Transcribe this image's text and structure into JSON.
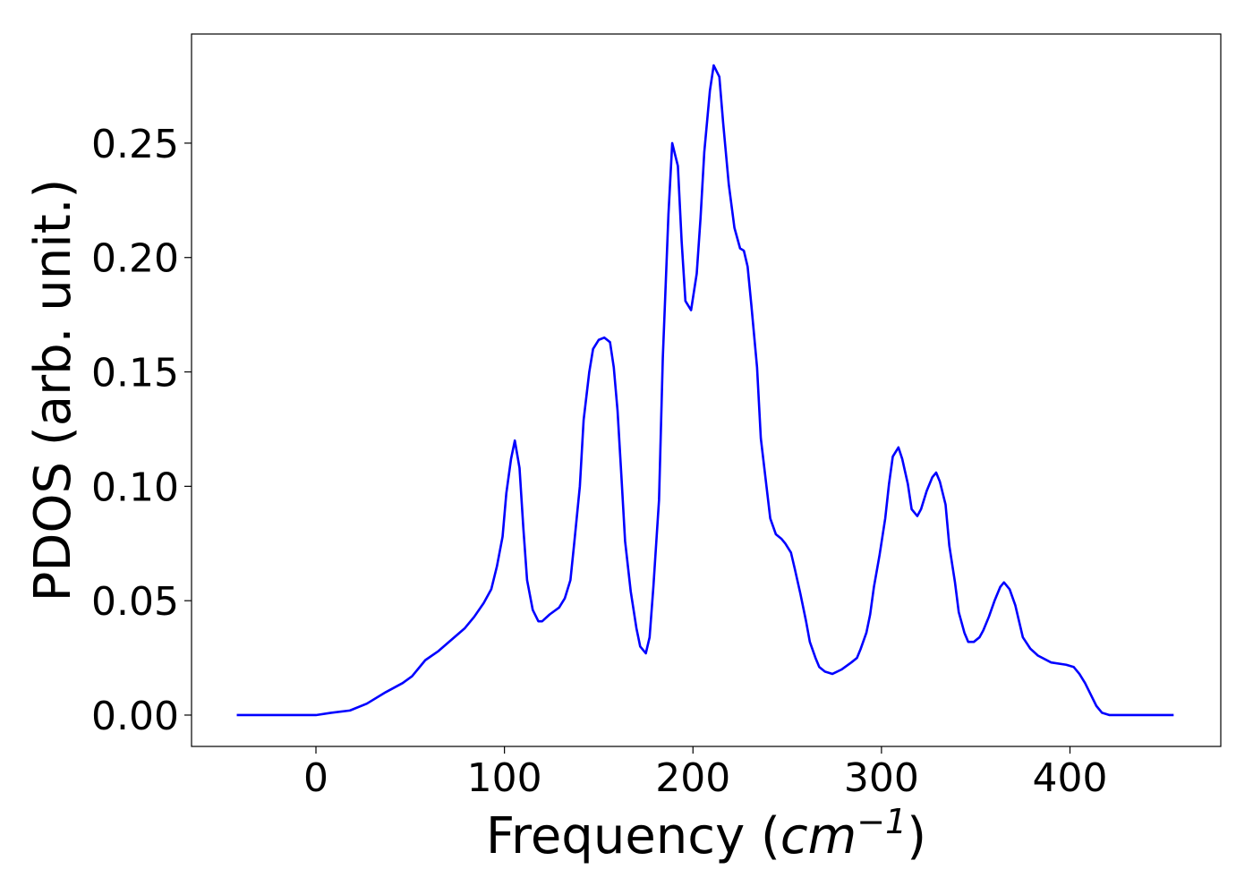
{
  "chart_data": {
    "type": "line",
    "xlabel": [
      "Frequency (",
      "cm",
      "−1",
      ")"
    ],
    "ylabel": "PDOS (arb. unit.)",
    "color": "#0000ff",
    "x": [
      -42,
      0,
      8,
      18,
      27,
      37,
      46,
      51,
      58,
      65,
      72,
      79,
      84,
      89,
      93,
      96,
      99,
      101,
      103.5,
      105.5,
      108,
      110,
      112,
      115,
      118,
      120,
      124,
      129,
      132,
      135,
      137,
      140,
      142,
      145,
      147,
      150,
      153,
      156,
      158,
      160,
      162,
      164,
      167,
      170,
      172,
      175,
      177,
      179,
      182,
      184,
      187,
      189,
      192,
      194,
      196,
      199,
      202,
      204,
      206,
      209,
      211,
      214,
      216,
      219,
      222,
      225,
      227,
      229,
      231,
      234,
      236,
      239,
      241,
      244,
      247,
      249,
      252,
      254,
      257,
      260,
      262,
      265,
      267,
      270,
      274,
      279,
      284,
      287,
      289,
      292,
      294,
      296,
      299,
      302,
      304,
      306,
      309,
      311,
      314,
      316,
      319,
      321,
      324,
      327,
      329,
      331,
      334,
      336,
      339,
      341,
      344,
      346,
      349,
      352,
      354,
      357,
      360,
      363,
      365,
      368,
      371,
      373,
      375,
      379,
      383,
      390,
      398,
      402,
      405,
      408,
      411,
      414,
      417,
      421,
      455
    ],
    "values": [
      0,
      0,
      0.001,
      0.002,
      0.005,
      0.01,
      0.014,
      0.017,
      0.024,
      0.028,
      0.033,
      0.038,
      0.043,
      0.049,
      0.055,
      0.065,
      0.078,
      0.097,
      0.112,
      0.12,
      0.108,
      0.082,
      0.059,
      0.046,
      0.041,
      0.041,
      0.044,
      0.047,
      0.051,
      0.059,
      0.075,
      0.1,
      0.129,
      0.15,
      0.16,
      0.164,
      0.165,
      0.163,
      0.152,
      0.133,
      0.105,
      0.076,
      0.054,
      0.038,
      0.03,
      0.027,
      0.034,
      0.056,
      0.094,
      0.156,
      0.219,
      0.25,
      0.24,
      0.207,
      0.181,
      0.177,
      0.193,
      0.217,
      0.246,
      0.273,
      0.284,
      0.279,
      0.259,
      0.232,
      0.213,
      0.204,
      0.203,
      0.196,
      0.179,
      0.152,
      0.121,
      0.1,
      0.086,
      0.079,
      0.077,
      0.075,
      0.071,
      0.064,
      0.053,
      0.041,
      0.032,
      0.025,
      0.021,
      0.019,
      0.018,
      0.02,
      0.023,
      0.025,
      0.029,
      0.036,
      0.044,
      0.056,
      0.07,
      0.086,
      0.101,
      0.113,
      0.117,
      0.112,
      0.101,
      0.09,
      0.087,
      0.09,
      0.098,
      0.104,
      0.106,
      0.102,
      0.092,
      0.074,
      0.058,
      0.045,
      0.036,
      0.032,
      0.032,
      0.034,
      0.037,
      0.043,
      0.05,
      0.056,
      0.058,
      0.055,
      0.048,
      0.041,
      0.034,
      0.029,
      0.026,
      0.023,
      0.022,
      0.021,
      0.018,
      0.014,
      0.009,
      0.004,
      0.001,
      0,
      0
    ],
    "xlim": [
      -66,
      480
    ],
    "xticks": [
      0,
      100,
      200,
      300,
      400
    ],
    "ylim": [
      -0.0137,
      0.2977
    ],
    "yticks": [
      {
        "value": 0,
        "label": "0.00"
      },
      {
        "value": 0.05,
        "label": "0.05"
      },
      {
        "value": 0.1,
        "label": "0.10"
      },
      {
        "value": 0.15,
        "label": "0.15"
      },
      {
        "value": 0.2,
        "label": "0.20"
      },
      {
        "value": 0.25,
        "label": "0.25"
      }
    ]
  }
}
